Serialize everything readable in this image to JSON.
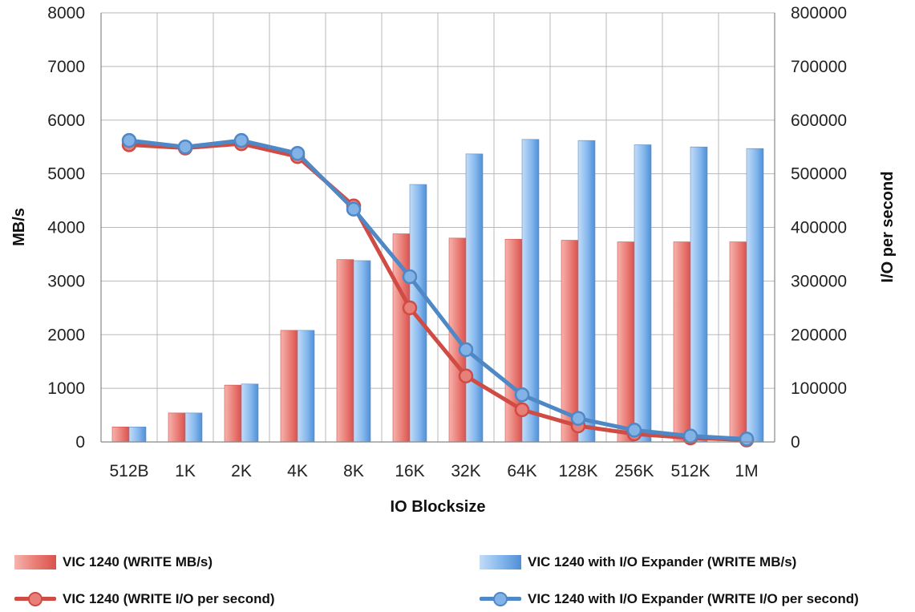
{
  "chart_data": {
    "type": "bar",
    "xlabel": "IO Blocksize",
    "ylabel": "MB/s",
    "y2label": "I/O per second",
    "categories": [
      "512B",
      "1K",
      "2K",
      "4K",
      "8K",
      "16K",
      "32K",
      "64K",
      "128K",
      "256K",
      "512K",
      "1M"
    ],
    "ylim": [
      0,
      8000
    ],
    "y2lim": [
      0,
      800000
    ],
    "yticks": [
      "0",
      "1000",
      "2000",
      "3000",
      "4000",
      "5000",
      "6000",
      "7000",
      "8000"
    ],
    "y2ticks": [
      "0",
      "100000",
      "200000",
      "300000",
      "400000",
      "500000",
      "600000",
      "700000",
      "800000"
    ],
    "grid": true,
    "legend_position": "bottom",
    "series": [
      {
        "name": "VIC 1240 (WRITE MB/s)",
        "kind": "bar",
        "axis": "left",
        "color": "#e8706a",
        "values": [
          280,
          540,
          1060,
          2080,
          3400,
          3880,
          3800,
          3780,
          3760,
          3730,
          3730,
          3730
        ]
      },
      {
        "name": "VIC 1240 with I/O Expander (WRITE MB/s)",
        "kind": "bar",
        "axis": "left",
        "color": "#6fa8e8",
        "values": [
          280,
          540,
          1080,
          2080,
          3380,
          4800,
          5370,
          5640,
          5620,
          5540,
          5500,
          5470
        ]
      },
      {
        "name": "VIC 1240 (WRITE I/O per second)",
        "kind": "line",
        "axis": "right",
        "color": "#cf4b43",
        "values": [
          554000,
          548000,
          556000,
          532000,
          440000,
          250000,
          123000,
          60000,
          30000,
          15000,
          7500,
          3700
        ]
      },
      {
        "name": "VIC 1240 with I/O Expander (WRITE I/O per second)",
        "kind": "line",
        "axis": "right",
        "color": "#4f88c6",
        "values": [
          562000,
          550000,
          562000,
          538000,
          434000,
          308000,
          172000,
          88000,
          44000,
          22000,
          11000,
          5500
        ]
      }
    ]
  }
}
